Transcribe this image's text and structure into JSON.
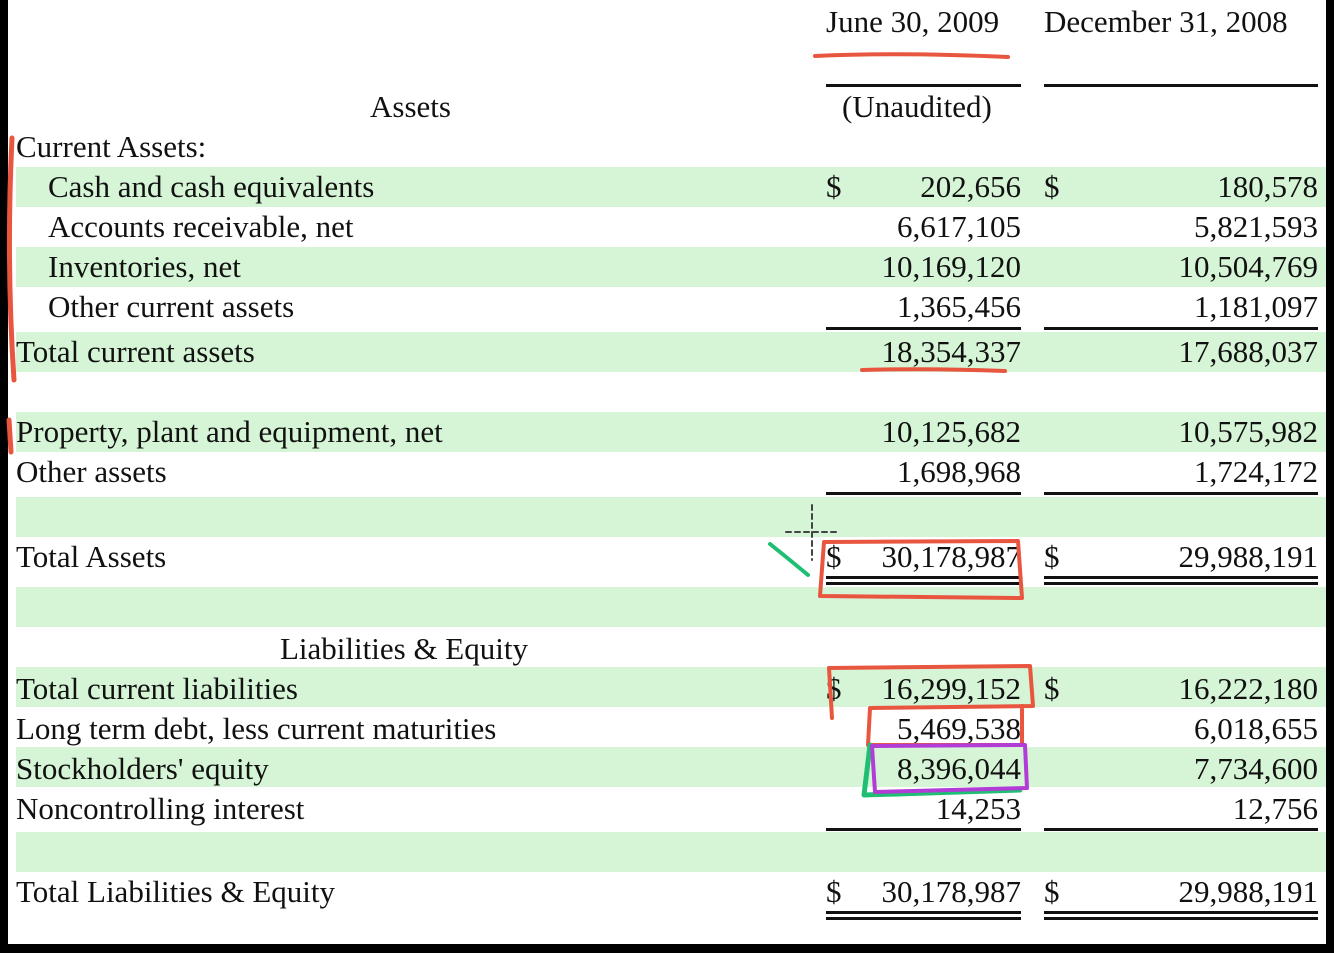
{
  "header": {
    "col1": "June 30, 2009",
    "col2": "December 31, 2008",
    "col1_sub": "(Unaudited)"
  },
  "sections": {
    "assets": "Assets",
    "current_assets": "Current Assets:",
    "liabilities_equity": "Liabilities & Equity"
  },
  "currency": "$",
  "rows": {
    "cash": {
      "label": "Cash and cash equivalents",
      "v2009": "202,656",
      "v2008": "180,578"
    },
    "receivable": {
      "label": "Accounts receivable, net",
      "v2009": "6,617,105",
      "v2008": "5,821,593"
    },
    "inventories": {
      "label": "Inventories, net",
      "v2009": "10,169,120",
      "v2008": "10,504,769"
    },
    "other_current": {
      "label": "Other current assets",
      "v2009": "1,365,456",
      "v2008": "1,181,097"
    },
    "total_current": {
      "label": "Total current assets",
      "v2009": "18,354,337",
      "v2008": "17,688,037"
    },
    "ppe": {
      "label": "Property, plant and equipment, net",
      "v2009": "10,125,682",
      "v2008": "10,575,982"
    },
    "other_assets": {
      "label": "Other assets",
      "v2009": "1,698,968",
      "v2008": "1,724,172"
    },
    "total_assets": {
      "label": "Total Assets",
      "v2009": "30,178,987",
      "v2008": "29,988,191"
    },
    "total_current_liab": {
      "label": "Total current liabilities",
      "v2009": "16,299,152",
      "v2008": "16,222,180"
    },
    "long_term_debt": {
      "label": "Long term debt, less current maturities",
      "v2009": "5,469,538",
      "v2008": "6,018,655"
    },
    "stockholders_equity": {
      "label": "Stockholders' equity",
      "v2009": "8,396,044",
      "v2008": "7,734,600"
    },
    "noncontrolling": {
      "label": "Noncontrolling interest",
      "v2009": "14,253",
      "v2008": "12,756"
    },
    "total_liab_equity": {
      "label": "Total Liabilities & Equity",
      "v2009": "30,178,987",
      "v2008": "29,988,191"
    }
  },
  "annotation_colors": {
    "red": "#e8563f",
    "green": "#1fbf73",
    "purple": "#b23cd6",
    "band": "#d6f5d6"
  }
}
